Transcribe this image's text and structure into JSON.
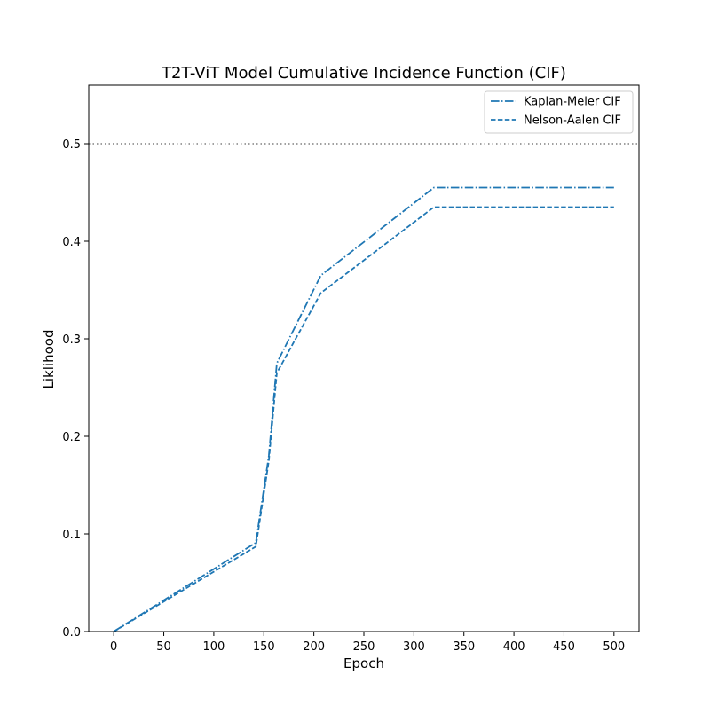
{
  "chart_data": {
    "type": "line",
    "title": "T2T-ViT Model Cumulative Incidence Function (CIF)",
    "xlabel": "Epoch",
    "ylabel": "Liklihood",
    "xlim": [
      -25,
      525
    ],
    "ylim": [
      0.0,
      0.56
    ],
    "xticks": [
      0,
      50,
      100,
      150,
      200,
      250,
      300,
      350,
      400,
      450,
      500
    ],
    "xtick_labels": [
      "0",
      "50",
      "100",
      "150",
      "200",
      "250",
      "300",
      "350",
      "400",
      "450",
      "500"
    ],
    "yticks": [
      0.0,
      0.1,
      0.2,
      0.3,
      0.4,
      0.5
    ],
    "ytick_labels": [
      "0.0",
      "0.1",
      "0.2",
      "0.3",
      "0.4",
      "0.5"
    ],
    "grid": false,
    "legend_position": "top-right",
    "reference_line": {
      "y": 0.5,
      "style": "dotted",
      "color": "#808080"
    },
    "series": [
      {
        "name": "Kaplan-Meier CIF",
        "style": "dashdot",
        "color": "#1f77b4",
        "x": [
          0,
          142,
          155,
          163,
          207,
          320,
          500
        ],
        "y": [
          0.0,
          0.091,
          0.18,
          0.275,
          0.365,
          0.455,
          0.455
        ]
      },
      {
        "name": "Nelson-Aalen CIF",
        "style": "dashed",
        "color": "#1f77b4",
        "x": [
          0,
          142,
          155,
          163,
          207,
          320,
          500
        ],
        "y": [
          0.0,
          0.087,
          0.175,
          0.265,
          0.347,
          0.435,
          0.435
        ]
      }
    ]
  }
}
